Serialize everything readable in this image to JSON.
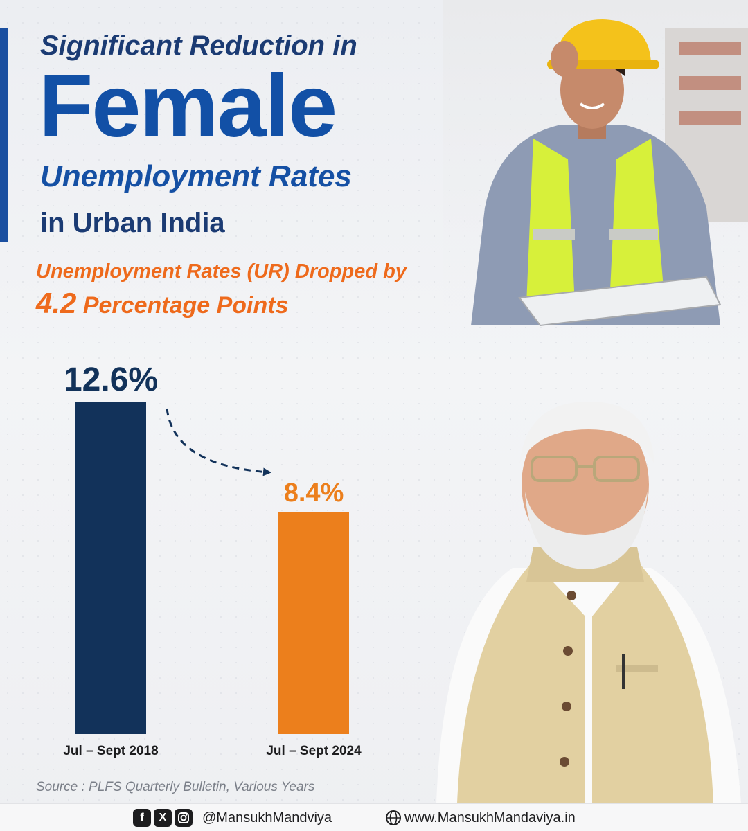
{
  "header": {
    "line1": "Significant Reduction in",
    "line2": "Female",
    "line3": "Unemployment Rates",
    "line4": "in Urban India"
  },
  "subheadline": {
    "line1": "Unemployment Rates (UR) Dropped by",
    "big_value": "4.2",
    "line2_rest": " Percentage Points"
  },
  "chart_data": {
    "type": "bar",
    "categories": [
      "Jul – Sept 2018",
      "Jul – Sept 2024"
    ],
    "values": [
      12.6,
      8.4
    ],
    "value_labels": [
      "12.6%",
      "8.4%"
    ],
    "colors": [
      "#12325a",
      "#ec7f1c"
    ],
    "title": "",
    "xlabel": "",
    "ylabel": "",
    "ylim": [
      0,
      12.6
    ],
    "grid": false,
    "legend": "none",
    "annotation": "dashed arrow from first bar to second bar"
  },
  "source_note": "Source : PLFS Quarterly Bulletin, Various Years",
  "footer": {
    "social_icons": [
      "facebook-icon",
      "x-icon",
      "instagram-icon"
    ],
    "handle": "@MansukhMandviya",
    "website": "www.MansukhMandaviya.in"
  },
  "colors": {
    "brand_blue": "#1250a6",
    "navy": "#1b3b73",
    "orange": "#ee6a1c"
  }
}
